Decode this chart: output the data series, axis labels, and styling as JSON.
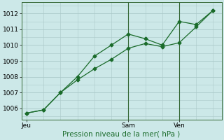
{
  "line1_x": [
    0,
    1,
    2,
    3,
    4,
    5,
    6,
    7,
    8,
    9,
    10,
    11
  ],
  "line1_y": [
    1005.7,
    1005.9,
    1007.0,
    1008.0,
    1009.3,
    1010.0,
    1010.7,
    1010.4,
    1010.0,
    1011.5,
    1011.3,
    1012.2
  ],
  "line2_x": [
    0,
    1,
    2,
    3,
    4,
    5,
    6,
    7,
    8,
    9,
    10,
    11
  ],
  "line2_y": [
    1005.7,
    1005.9,
    1007.0,
    1007.8,
    1008.5,
    1009.1,
    1009.8,
    1010.1,
    1009.9,
    1010.15,
    1011.15,
    1012.2
  ],
  "line_color": "#1a6b2a",
  "marker": "D",
  "marker_size": 2.5,
  "xtick_positions": [
    0,
    6,
    9
  ],
  "xtick_labels": [
    "Jeu",
    "Sam",
    "Ven"
  ],
  "ytick_positions": [
    1006,
    1007,
    1008,
    1009,
    1010,
    1011,
    1012
  ],
  "ytick_labels": [
    "1006",
    "1007",
    "1008",
    "1009",
    "1010",
    "1011",
    "1012"
  ],
  "xlabel": "Pression niveau de la mer( hPa )",
  "ylim": [
    1005.3,
    1012.7
  ],
  "xlim": [
    -0.3,
    11.5
  ],
  "bg_color": "#cce8e8",
  "grid_color": "#aac8c8",
  "vline_positions": [
    6,
    9
  ],
  "tick_fontsize": 6.5,
  "xlabel_fontsize": 7.5
}
